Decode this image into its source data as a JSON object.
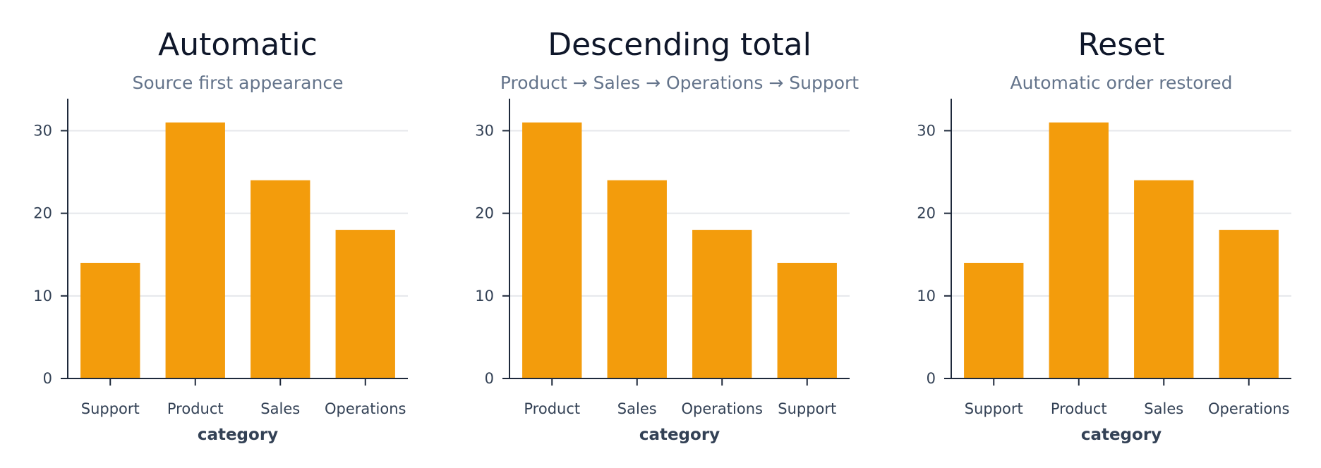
{
  "colors": {
    "bar": "#f39c0c",
    "grid": "#e5e7eb",
    "axis": "#1e293b"
  },
  "chart_data": [
    {
      "type": "bar",
      "title": "Automatic",
      "subtitle": "Source first appearance",
      "categories": [
        "Support",
        "Product",
        "Sales",
        "Operations"
      ],
      "values": [
        14,
        31,
        24,
        18
      ],
      "xlabel": "category",
      "ylabel": "",
      "ylim": [
        0,
        32
      ],
      "yticks": [
        0,
        10,
        20,
        30
      ],
      "grid": true
    },
    {
      "type": "bar",
      "title": "Descending total",
      "subtitle": "Product → Sales → Operations → Support",
      "categories": [
        "Product",
        "Sales",
        "Operations",
        "Support"
      ],
      "values": [
        31,
        24,
        18,
        14
      ],
      "xlabel": "category",
      "ylabel": "",
      "ylim": [
        0,
        32
      ],
      "yticks": [
        0,
        10,
        20,
        30
      ],
      "grid": true
    },
    {
      "type": "bar",
      "title": "Reset",
      "subtitle": "Automatic order restored",
      "categories": [
        "Support",
        "Product",
        "Sales",
        "Operations"
      ],
      "values": [
        14,
        31,
        24,
        18
      ],
      "xlabel": "category",
      "ylabel": "",
      "ylim": [
        0,
        32
      ],
      "yticks": [
        0,
        10,
        20,
        30
      ],
      "grid": true
    }
  ]
}
